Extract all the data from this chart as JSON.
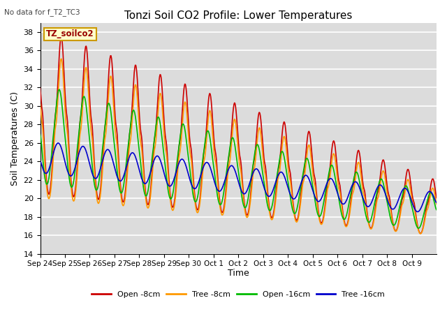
{
  "title": "Tonzi Soil CO2 Profile: Lower Temperatures",
  "subtitle": "No data for f_T2_TC3",
  "ylabel": "Soil Temperatures (C)",
  "xlabel": "Time",
  "box_label": "TZ_soilco2",
  "ylim": [
    14,
    39
  ],
  "yticks": [
    14,
    16,
    18,
    20,
    22,
    24,
    26,
    28,
    30,
    32,
    34,
    36,
    38
  ],
  "xtick_labels": [
    "Sep 24",
    "Sep 25",
    "Sep 26",
    "Sep 27",
    "Sep 28",
    "Sep 29",
    "Sep 30",
    "Oct 1",
    "Oct 2",
    "Oct 3",
    "Oct 4",
    "Oct 5",
    "Oct 6",
    "Oct 7",
    "Oct 8",
    "Oct 9"
  ],
  "bg_color": "#dcdcdc",
  "legend": [
    "Open -8cm",
    "Tree -8cm",
    "Open -16cm",
    "Tree -16cm"
  ],
  "line_colors": [
    "#cc0000",
    "#ff9900",
    "#00bb00",
    "#0000cc"
  ],
  "line_width": 1.2,
  "days": 16,
  "pts_per_day": 48
}
